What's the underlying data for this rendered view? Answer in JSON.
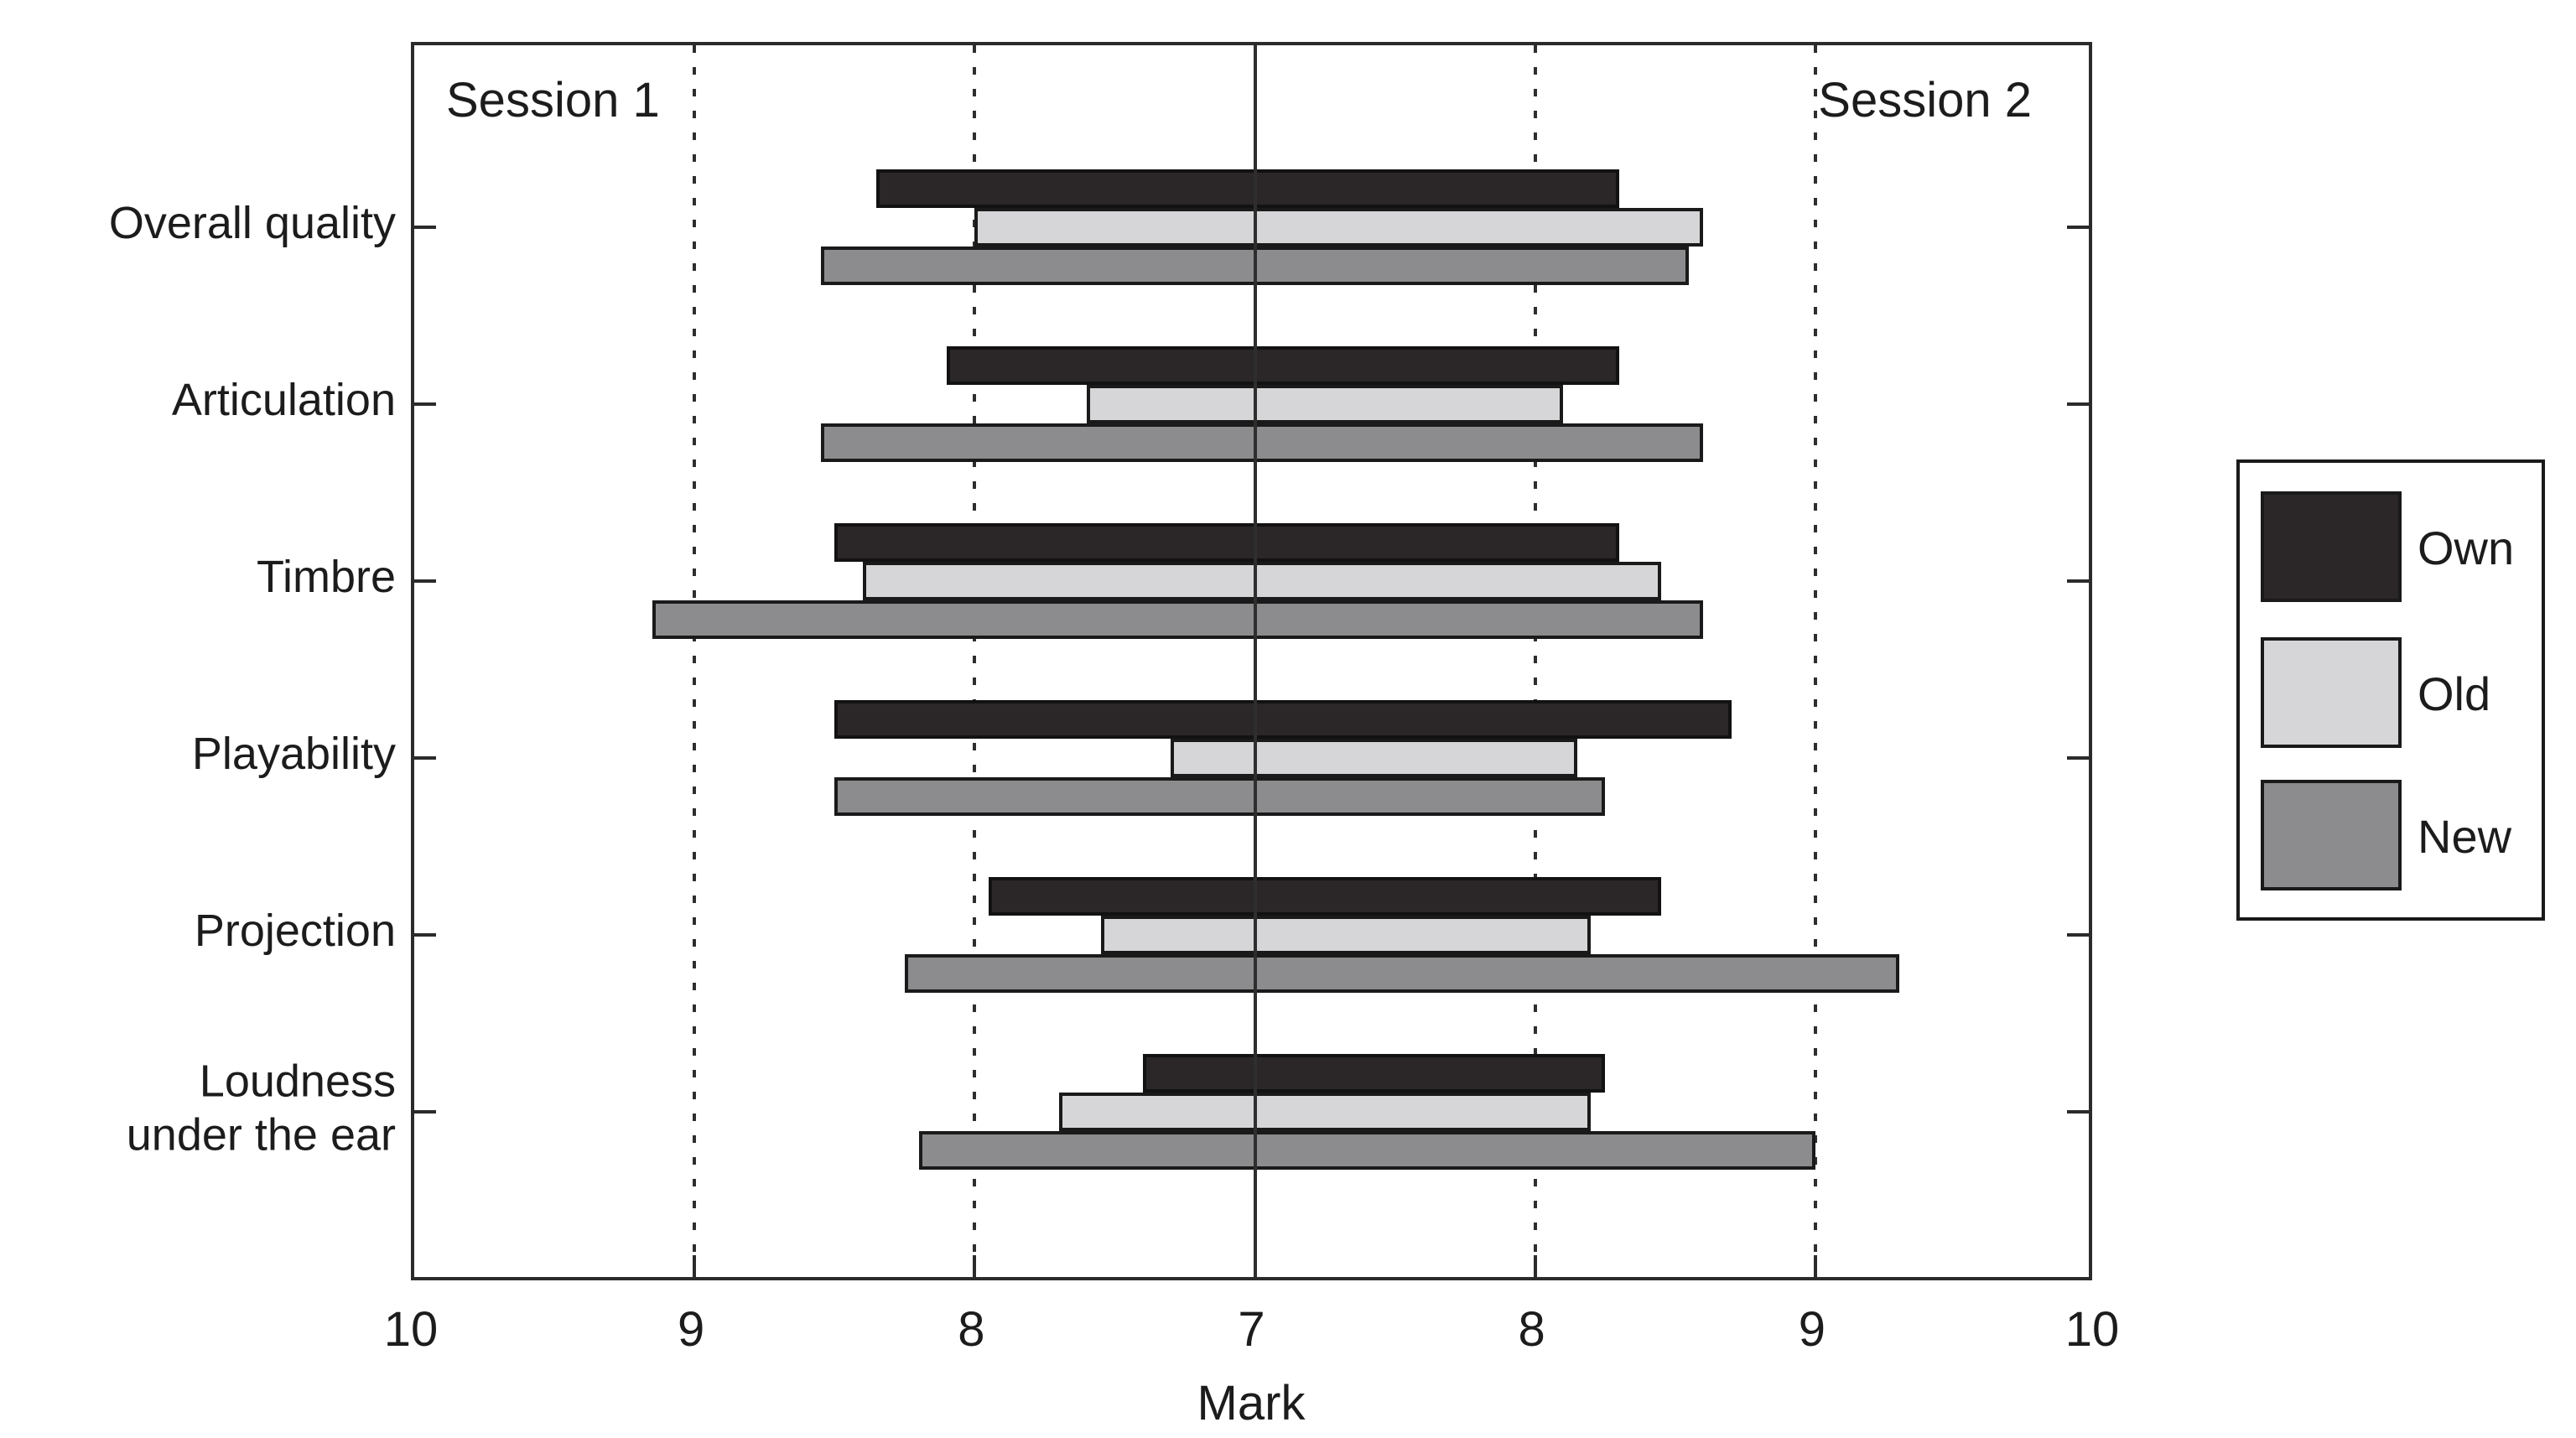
{
  "chart_data": {
    "type": "bar",
    "variant": "mirrored-horizontal-bars",
    "title": "",
    "xlabel": "Mark",
    "session_labels": {
      "left": "Session 1",
      "right": "Session 2"
    },
    "axis": {
      "tick_labels": [
        "10",
        "9",
        "8",
        "7",
        "8",
        "9",
        "10"
      ],
      "center_value": 7,
      "max_value": 10,
      "grid": "dotted vertical lines at 8 and 9 on both sides, solid line at center 7"
    },
    "categories": [
      "Overall quality",
      "Articulation",
      "Timbre",
      "Playability",
      "Projection",
      "Loudness under the ear"
    ],
    "category_label_lines": [
      [
        "Overall quality"
      ],
      [
        "Articulation"
      ],
      [
        "Timbre"
      ],
      [
        "Playability"
      ],
      [
        "Projection"
      ],
      [
        "Loudness",
        "under the ear"
      ]
    ],
    "series": [
      {
        "name": "Own",
        "color": "#2b2627",
        "border_color": "#121212",
        "session1": [
          8.35,
          8.1,
          8.5,
          8.5,
          7.95,
          7.4
        ],
        "session2": [
          8.3,
          8.3,
          8.3,
          8.7,
          8.45,
          8.25
        ]
      },
      {
        "name": "Old",
        "color": "#d6d6d8",
        "border_color": "#1a1a1a",
        "session1": [
          8.0,
          7.6,
          8.4,
          7.3,
          7.55,
          7.7
        ],
        "session2": [
          8.6,
          8.1,
          8.45,
          8.15,
          8.2,
          8.2
        ]
      },
      {
        "name": "New",
        "color": "#8c8c8e",
        "border_color": "#1a1a1a",
        "session1": [
          8.55,
          8.55,
          9.15,
          8.5,
          8.25,
          8.2
        ],
        "session2": [
          8.55,
          8.6,
          8.6,
          8.25,
          9.3,
          9.0
        ]
      }
    ],
    "legend": {
      "entries": [
        "Own",
        "Old",
        "New"
      ],
      "position": "outside-right"
    },
    "colors": {
      "axis": "#2b2b2b",
      "text": "#1c1c1c",
      "background": "#ffffff"
    }
  }
}
